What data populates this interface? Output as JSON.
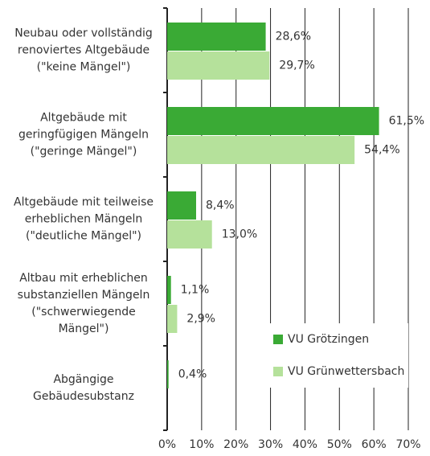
{
  "chart_data": {
    "type": "barh",
    "categories": [
      "Neubau oder vollständig\nrenoviertes Altgebäude\n(\"keine Mängel\")",
      "Altgebäude mit\ngeringfügigen Mängeln\n(\"geringe Mängel\")",
      "Altgebäude mit teilweise\nerheblichen Mängeln\n(\"deutliche Mängel\")",
      "Altbau mit erheblichen\nsubstanziellen Mängeln\n(\"schwerwiegende\nMängel\")",
      "Abgängige\nGebäudesubstanz"
    ],
    "series": [
      {
        "name": "VU Grötzingen",
        "color": "#3aaa35",
        "values": [
          28.6,
          61.5,
          8.4,
          1.1,
          0.4
        ],
        "value_labels": [
          "28,6%",
          "61,5%",
          "8,4%",
          "1,1%",
          "0,4%"
        ]
      },
      {
        "name": "VU Grünwettersbach",
        "color": "#b5e19b",
        "values": [
          29.7,
          54.4,
          13.0,
          2.9,
          null
        ],
        "value_labels": [
          "29,7%",
          "54,4%",
          "13,0%",
          "2,9%",
          null
        ]
      }
    ],
    "xlim": [
      0,
      70
    ],
    "xticks": [
      {
        "value": 0,
        "label": "0%"
      },
      {
        "value": 10,
        "label": "10%"
      },
      {
        "value": 20,
        "label": "20%"
      },
      {
        "value": 30,
        "label": "30%"
      },
      {
        "value": 40,
        "label": "40%"
      },
      {
        "value": 50,
        "label": "50%"
      },
      {
        "value": 60,
        "label": "60%"
      },
      {
        "value": 70,
        "label": "70%"
      }
    ],
    "grid": true,
    "legend": "lower right"
  }
}
